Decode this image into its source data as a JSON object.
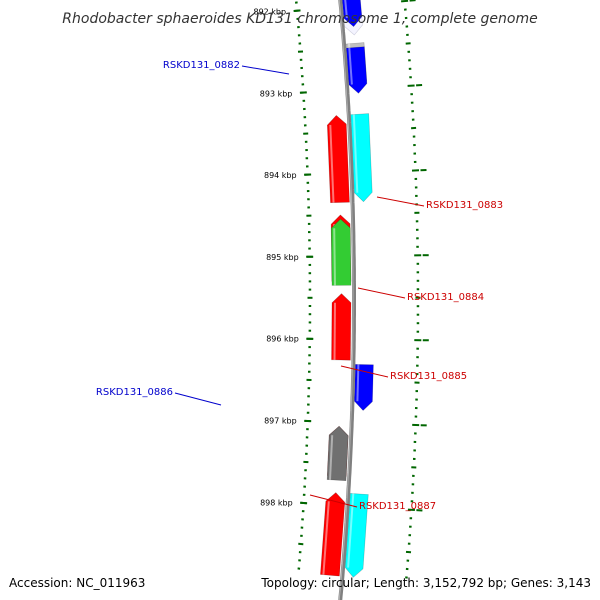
{
  "title": "Rhodobacter sphaeroides KD131 chromosome 1, complete genome",
  "footer": {
    "accession": "Accession: NC_011963",
    "summary": "Topology: circular; Length: 3,152,792 bp; Genes: 3,143"
  },
  "colors": {
    "backbone": "#808080",
    "tick": "#006600",
    "red": "#ff0000",
    "cyan": "#00ffff",
    "blue": "#0000ff",
    "green": "#33cc33",
    "dark_gray": "#707070",
    "light_gray": "#c0c0c0",
    "label_red": "#cc0000",
    "label_blue": "#0000cc"
  },
  "scale": {
    "start_kbp": 891.8,
    "end_kbp": 898.85,
    "unit": "kbp",
    "major_ticks": [
      {
        "value": 892,
        "label": "892 kbp"
      },
      {
        "value": 893,
        "label": "893 kbp"
      },
      {
        "value": 894,
        "label": "894 kbp"
      },
      {
        "value": 895,
        "label": "895 kbp"
      },
      {
        "value": 896,
        "label": "896 kbp"
      },
      {
        "value": 897,
        "label": "897 kbp"
      },
      {
        "value": 898,
        "label": "898 kbp"
      }
    ]
  },
  "features": [
    {
      "name": "feature-892-white",
      "start_kbp": 891.8,
      "end_kbp": 892.35,
      "strand": "+",
      "color": "white"
    },
    {
      "name": "feature-892-blue",
      "start_kbp": 891.8,
      "end_kbp": 892.25,
      "strand": "+",
      "color": "blue"
    },
    {
      "name": "feature-0882-gray",
      "start_kbp": 892.45,
      "end_kbp": 893.02,
      "strand": "+",
      "color": "light_gray"
    },
    {
      "name": "feature-0882-blue",
      "start_kbp": 892.5,
      "end_kbp": 893.05,
      "strand": "+",
      "color": "blue"
    },
    {
      "name": "feature-0883-red",
      "start_kbp": 893.3,
      "end_kbp": 894.35,
      "strand": "-",
      "color": "red"
    },
    {
      "name": "feature-0883-cyan",
      "start_kbp": 893.3,
      "end_kbp": 894.35,
      "strand": "+",
      "color": "cyan"
    },
    {
      "name": "feature-0884-red",
      "start_kbp": 894.5,
      "end_kbp": 895.3,
      "strand": "-",
      "color": "red"
    },
    {
      "name": "feature-0884-green",
      "start_kbp": 894.55,
      "end_kbp": 895.35,
      "strand": "-",
      "color": "green"
    },
    {
      "name": "feature-0885-red",
      "start_kbp": 895.45,
      "end_kbp": 896.25,
      "strand": "-",
      "color": "red"
    },
    {
      "name": "feature-0886-blue",
      "start_kbp": 896.3,
      "end_kbp": 896.85,
      "strand": "+",
      "color": "blue"
    },
    {
      "name": "feature-0887-red",
      "start_kbp": 897.05,
      "end_kbp": 897.65,
      "strand": "-",
      "color": "red"
    },
    {
      "name": "feature-0887-gray",
      "start_kbp": 897.05,
      "end_kbp": 897.7,
      "strand": "-",
      "color": "dark_gray"
    },
    {
      "name": "feature-898-red",
      "start_kbp": 897.85,
      "end_kbp": 898.85,
      "strand": "-",
      "color": "red"
    },
    {
      "name": "feature-898-cyan",
      "start_kbp": 897.85,
      "end_kbp": 898.85,
      "strand": "+",
      "color": "cyan"
    }
  ],
  "gene_labels": [
    {
      "name": "RSKD131_0882",
      "text": "RSKD131_0882",
      "color": "label_blue",
      "side": "left"
    },
    {
      "name": "RSKD131_0883",
      "text": "RSKD131_0883",
      "color": "label_red",
      "side": "right"
    },
    {
      "name": "RSKD131_0884",
      "text": "RSKD131_0884",
      "color": "label_red",
      "side": "right"
    },
    {
      "name": "RSKD131_0885",
      "text": "RSKD131_0885",
      "color": "label_red",
      "side": "right"
    },
    {
      "name": "RSKD131_0886",
      "text": "RSKD131_0886",
      "color": "label_blue",
      "side": "left"
    },
    {
      "name": "RSKD131_0887",
      "text": "RSKD131_0887",
      "color": "label_red",
      "side": "right"
    }
  ]
}
